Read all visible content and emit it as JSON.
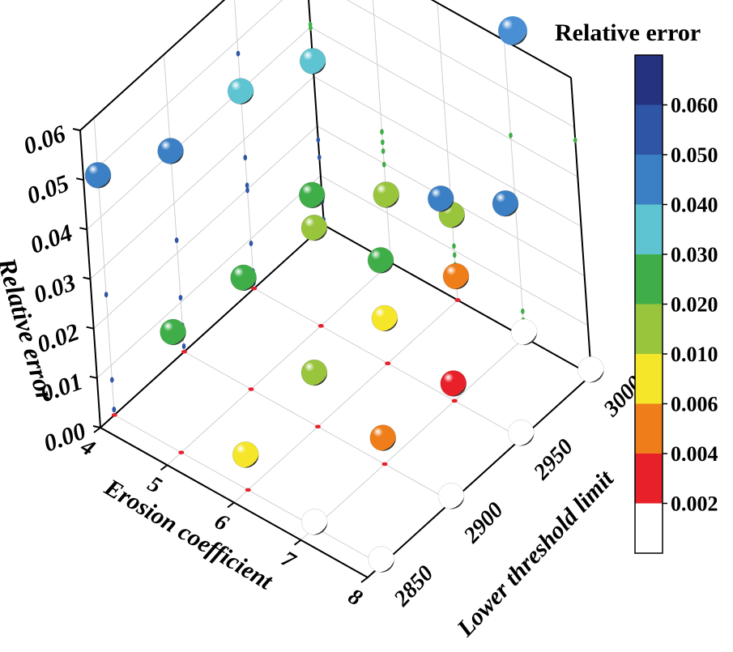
{
  "chart_data": {
    "type": "scatter",
    "subtype": "3d-bubble",
    "title": "",
    "xlabel": "Erosion coefficient",
    "ylabel": "Lower threshold limit",
    "zlabel": "Relative error",
    "xlim": [
      4,
      8
    ],
    "ylim": [
      2840,
      3000
    ],
    "zlim": [
      0,
      0.06
    ],
    "x_ticks": [
      "4",
      "5",
      "6",
      "7",
      "8"
    ],
    "y_ticks": [
      "2850",
      "2900",
      "2950",
      "3000"
    ],
    "z_ticks": [
      "0.00",
      "0.01",
      "0.02",
      "0.03",
      "0.04",
      "0.05",
      "0.06"
    ],
    "legend": {
      "label": "Relative error",
      "position": "top-right"
    },
    "colorbar": {
      "labels": [
        "0.002",
        "0.004",
        "0.006",
        "0.010",
        "0.020",
        "0.030",
        "0.040",
        "0.050",
        "0.060"
      ],
      "bands": [
        {
          "lo": 0.0,
          "hi": 0.002,
          "color": "#ffffff"
        },
        {
          "lo": 0.002,
          "hi": 0.004,
          "color": "#e8202a"
        },
        {
          "lo": 0.004,
          "hi": 0.006,
          "color": "#ef7d1a"
        },
        {
          "lo": 0.006,
          "hi": 0.01,
          "color": "#f5e629"
        },
        {
          "lo": 0.01,
          "hi": 0.02,
          "color": "#98c53c"
        },
        {
          "lo": 0.02,
          "hi": 0.03,
          "color": "#3fae49"
        },
        {
          "lo": 0.03,
          "hi": 0.04,
          "color": "#5ec4d2"
        },
        {
          "lo": 0.04,
          "hi": 0.05,
          "color": "#3b7fc4"
        },
        {
          "lo": 0.05,
          "hi": 0.06,
          "color": "#2f55a6"
        },
        {
          "lo": 0.06,
          "hi": 0.07,
          "color": "#25327e"
        }
      ]
    },
    "points": [
      {
        "x": 4,
        "y": 2850,
        "z": 0.0484
      },
      {
        "x": 5,
        "y": 2850,
        "z": 0.0243
      },
      {
        "x": 6,
        "y": 2850,
        "z": 0.0071
      },
      {
        "x": 7,
        "y": 2850,
        "z": 0.0011
      },
      {
        "x": 8,
        "y": 2850,
        "z": 0.0011
      },
      {
        "x": 4,
        "y": 2900,
        "z": 0.0405
      },
      {
        "x": 5,
        "y": 2900,
        "z": 0.0225
      },
      {
        "x": 6,
        "y": 2900,
        "z": 0.0109
      },
      {
        "x": 7,
        "y": 2900,
        "z": 0.0053
      },
      {
        "x": 8,
        "y": 2900,
        "z": 0.0011
      },
      {
        "x": 4,
        "y": 2950,
        "z": 0.0398
      },
      {
        "x": 5,
        "y": 2950,
        "z": 0.0198
      },
      {
        "x": 6,
        "y": 2950,
        "z": 0.0091
      },
      {
        "x": 7,
        "y": 2950,
        "z": 0.0035
      },
      {
        "x": 8,
        "y": 2950,
        "z": 0.0011
      },
      {
        "x": 4,
        "y": 3000,
        "z": 0.0331
      },
      {
        "x": 5,
        "y": 3000,
        "z": 0.0137
      },
      {
        "x": 6,
        "y": 3000,
        "z": 0.0048
      },
      {
        "x": 7,
        "y": 3000,
        "z": 0.0011
      },
      {
        "x": 8,
        "y": 3000,
        "z": 0.0011
      },
      {
        "x": 5,
        "y": 2950,
        "z": 0.0264
      },
      {
        "x": 6,
        "y": 2950,
        "z": 0.0208
      },
      {
        "x": 6,
        "y": 3000,
        "z": 0.0172
      },
      {
        "x": 7,
        "y": 2950,
        "z": 0.0408
      },
      {
        "x": 8,
        "y": 2950,
        "z": 0.0474
      }
    ]
  }
}
